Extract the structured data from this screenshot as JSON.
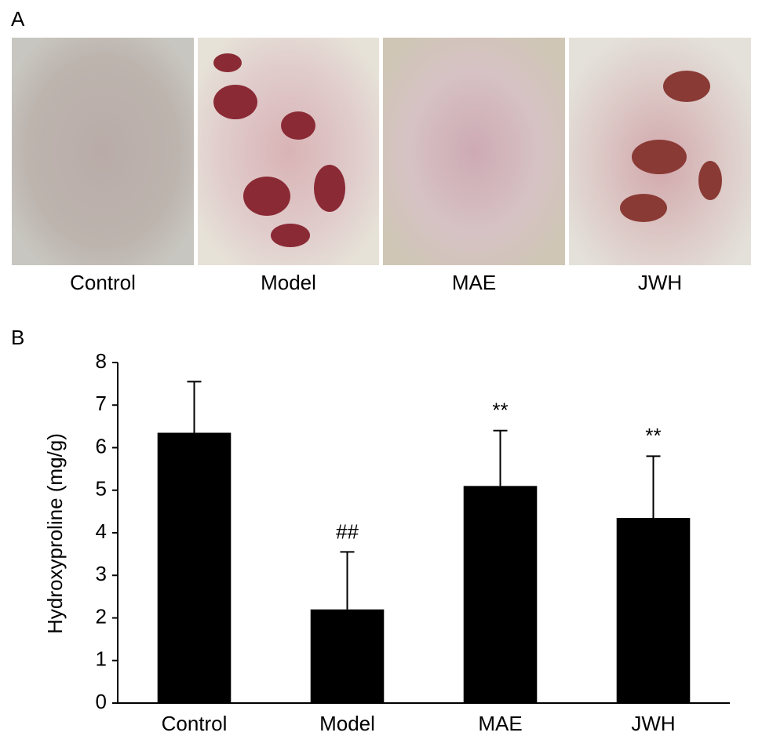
{
  "panel_a": {
    "label": "A",
    "captions": [
      "Control",
      "Model",
      "MAE",
      "JWH"
    ]
  },
  "panel_b": {
    "label": "B"
  },
  "chart_data": {
    "type": "bar",
    "y_label": "Hydroxyproline (mg/g)",
    "categories": [
      "Control",
      "Model",
      "MAE",
      "JWH"
    ],
    "values": [
      6.35,
      2.2,
      5.1,
      4.35
    ],
    "errors": [
      1.2,
      1.35,
      1.3,
      1.45
    ],
    "annotations": [
      null,
      "##",
      "**",
      "**"
    ],
    "color": "#000000",
    "ylim": [
      0,
      8
    ],
    "yticks": [
      0,
      1,
      2,
      3,
      4,
      5,
      6,
      7,
      8
    ],
    "grid": false
  }
}
